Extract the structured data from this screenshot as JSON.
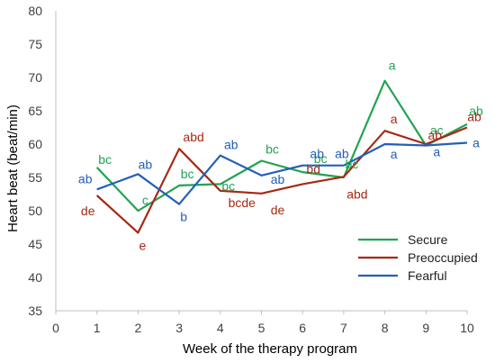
{
  "chart_data": {
    "type": "line",
    "title": "",
    "xlabel": "Week of the therapy program",
    "ylabel": "Heart beat (beat/min)",
    "xlim": [
      0,
      10
    ],
    "ylim": [
      35,
      80
    ],
    "x_ticks": [
      "0",
      "1",
      "2",
      "3",
      "4",
      "5",
      "6",
      "7",
      "8",
      "9",
      "10"
    ],
    "y_ticks": [
      "35",
      "40",
      "45",
      "50",
      "55",
      "60",
      "65",
      "70",
      "75",
      "80"
    ],
    "grid": false,
    "legend_position": "bottom-right",
    "x": [
      1,
      2,
      3,
      4,
      5,
      6,
      7,
      8,
      9,
      10
    ],
    "series": [
      {
        "name": "Secure",
        "color": "#21a353",
        "values": [
          56.5,
          50.0,
          53.8,
          54.0,
          57.5,
          55.8,
          55.0,
          69.5,
          59.8,
          63.0
        ],
        "labels": [
          "bc",
          "c",
          "bc",
          "bc",
          "bc",
          "bc",
          "bc",
          "a",
          "ac",
          "ab"
        ]
      },
      {
        "name": "Preoccupied",
        "color": "#a52a14",
        "values": [
          52.3,
          46.7,
          59.3,
          53.0,
          52.6,
          54.0,
          55.1,
          62.0,
          60.0,
          62.5
        ],
        "labels": [
          "de",
          "e",
          "abd",
          "bcde",
          "de",
          "bd",
          "abd",
          "a",
          "ab",
          "ab"
        ]
      },
      {
        "name": "Fearful",
        "color": "#2260b5",
        "values": [
          53.2,
          55.5,
          51.0,
          58.3,
          55.3,
          56.8,
          56.8,
          60.0,
          59.8,
          60.2
        ],
        "labels": [
          "ab",
          "ab",
          "b",
          "ab",
          "ab",
          "ab",
          "ab",
          "a",
          "a",
          "a"
        ]
      }
    ]
  }
}
